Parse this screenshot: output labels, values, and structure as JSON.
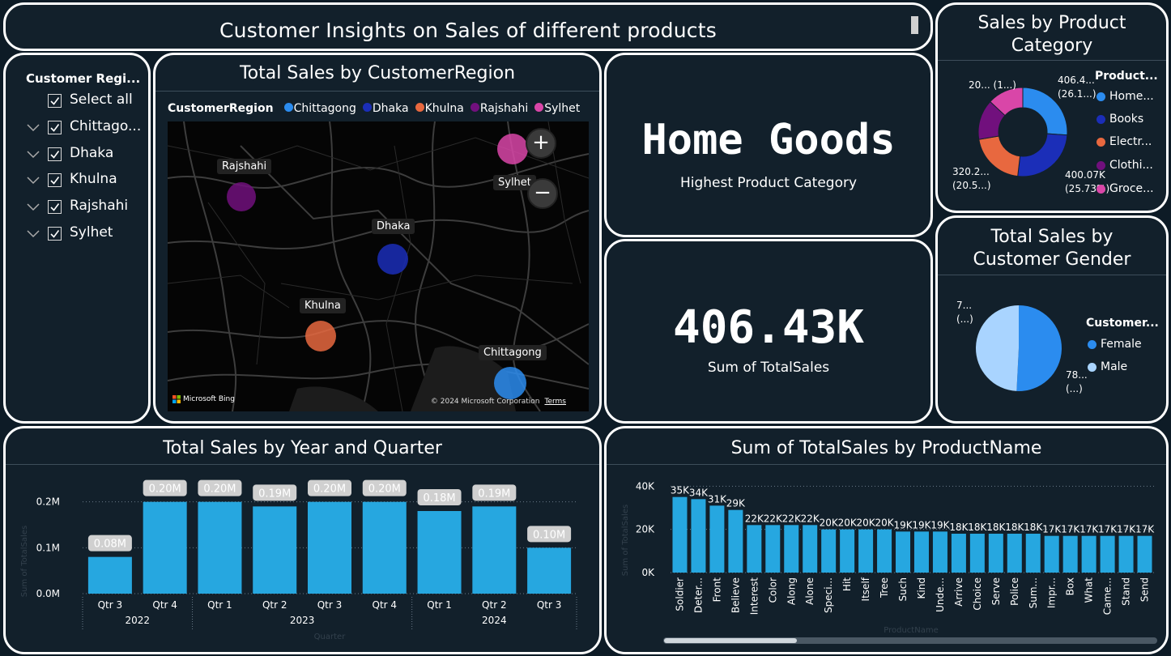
{
  "banner": {
    "title": "Customer Insights on Sales of different products"
  },
  "slicer": {
    "title": "Customer Regi...",
    "items": [
      {
        "label": "Select all",
        "checked": true,
        "expandable": false
      },
      {
        "label": "Chittago...",
        "checked": true,
        "expandable": true
      },
      {
        "label": "Dhaka",
        "checked": true,
        "expandable": true
      },
      {
        "label": "Khulna",
        "checked": true,
        "expandable": true
      },
      {
        "label": "Rajshahi",
        "checked": true,
        "expandable": true
      },
      {
        "label": "Sylhet",
        "checked": true,
        "expandable": true
      }
    ]
  },
  "map": {
    "title": "Total Sales by CustomerRegion",
    "legend_title": "CustomerRegion",
    "legend": [
      {
        "name": "Chittagong",
        "color": "#2b8cef"
      },
      {
        "name": "Dhaka",
        "color": "#1b2eb8"
      },
      {
        "name": "Khulna",
        "color": "#e8683f"
      },
      {
        "name": "Rajshahi",
        "color": "#71107d"
      },
      {
        "name": "Sylhet",
        "color": "#d946a8"
      }
    ],
    "labels": {
      "rajshahi": "Rajshahi",
      "sylhet": "Sylhet",
      "dhaka": "Dhaka",
      "khulna": "Khulna",
      "chittagong": "Chittagong"
    },
    "zoom_in": "+",
    "zoom_out": "−",
    "attribution": "Microsoft Bing",
    "copyright": "© 2024 Microsoft Corporation",
    "terms": "Terms"
  },
  "kpi_category": {
    "value": "Home Goods",
    "label": "Highest Product Category"
  },
  "kpi_sales": {
    "value": "406.43K",
    "label": "Sum of TotalSales"
  },
  "category_donut": {
    "title": "Sales by Product Category",
    "legend_title": "Product...",
    "legend": [
      {
        "name": "Home...",
        "color": "#2b8cef"
      },
      {
        "name": "Books",
        "color": "#1b2eb8"
      },
      {
        "name": "Electr...",
        "color": "#e8683f"
      },
      {
        "name": "Clothi...",
        "color": "#71107d"
      },
      {
        "name": "Groce...",
        "color": "#d946a8"
      }
    ],
    "labels": {
      "home_l1": "406.4...",
      "home_l2": "(26.1...)",
      "books_l1": "400.07K",
      "books_l2": "(25.73%)",
      "elec_l1": "320.2...",
      "elec_l2": "(20.5...)",
      "groc_l1": "20... (1...)"
    }
  },
  "gender_pie": {
    "title": "Total Sales by Customer Gender",
    "legend_title": "Customer...",
    "legend": [
      {
        "name": "Female",
        "color": "#2b8cef"
      },
      {
        "name": "Male",
        "color": "#a9d4ff"
      }
    ],
    "labels": {
      "top_l1": "7...",
      "top_l2": "(...)",
      "bot_l1": "78...",
      "bot_l2": "(...)"
    }
  },
  "chart_data": [
    {
      "type": "bar",
      "title": "Total Sales by Year and Quarter",
      "categories": [
        "Qtr 3",
        "Qtr 4",
        "Qtr 1",
        "Qtr 2",
        "Qtr 3",
        "Qtr 4",
        "Qtr 1",
        "Qtr 2",
        "Qtr 3"
      ],
      "years": [
        {
          "label": "2022",
          "span": 2
        },
        {
          "label": "2023",
          "span": 4
        },
        {
          "label": "2024",
          "span": 3
        }
      ],
      "values": [
        0.08,
        0.2,
        0.2,
        0.19,
        0.2,
        0.2,
        0.18,
        0.19,
        0.1
      ],
      "data_labels": [
        "0.08M",
        "0.20M",
        "0.20M",
        "0.19M",
        "0.20M",
        "0.20M",
        "0.18M",
        "0.19M",
        "0.10M"
      ],
      "yticks": [
        {
          "v": 0,
          "label": "0.0M"
        },
        {
          "v": 0.1,
          "label": "0.1M"
        },
        {
          "v": 0.2,
          "label": "0.2M"
        }
      ],
      "ylim": [
        0,
        0.24
      ],
      "color": "#26a7e0",
      "ylabel": "Sum of TotalSales",
      "xlabel": "Quarter"
    },
    {
      "type": "bar",
      "title": "Sum of TotalSales by ProductName",
      "categories": [
        "Soldier",
        "Deter...",
        "Front",
        "Believe",
        "Interest",
        "Color",
        "Along",
        "Alone",
        "Speci...",
        "Hit",
        "Itself",
        "Tree",
        "Such",
        "Kind",
        "Unde...",
        "Arrive",
        "Choice",
        "Serve",
        "Police",
        "Sum...",
        "Impr...",
        "Box",
        "What",
        "Came...",
        "Stand",
        "Send"
      ],
      "values": [
        35,
        34,
        31,
        29,
        22,
        22,
        22,
        22,
        20,
        20,
        20,
        20,
        19,
        19,
        19,
        18,
        18,
        18,
        18,
        18,
        17,
        17,
        17,
        17,
        17,
        17
      ],
      "data_labels": [
        "35K",
        "34K",
        "31K",
        "29K",
        "22K",
        "22K",
        "22K",
        "22K",
        "20K",
        "20K",
        "20K",
        "20K",
        "19K",
        "19K",
        "19K",
        "18K",
        "18K",
        "18K",
        "18K",
        "18K",
        "17K",
        "17K",
        "17K",
        "17K",
        "17K",
        "17K"
      ],
      "yticks": [
        {
          "v": 0,
          "label": "0K"
        },
        {
          "v": 20,
          "label": "20K"
        },
        {
          "v": 40,
          "label": "40K"
        }
      ],
      "ylim": [
        0,
        42
      ],
      "color": "#26a7e0",
      "ylabel": "Sum of TotalSales",
      "xlabel": "ProductName"
    }
  ]
}
